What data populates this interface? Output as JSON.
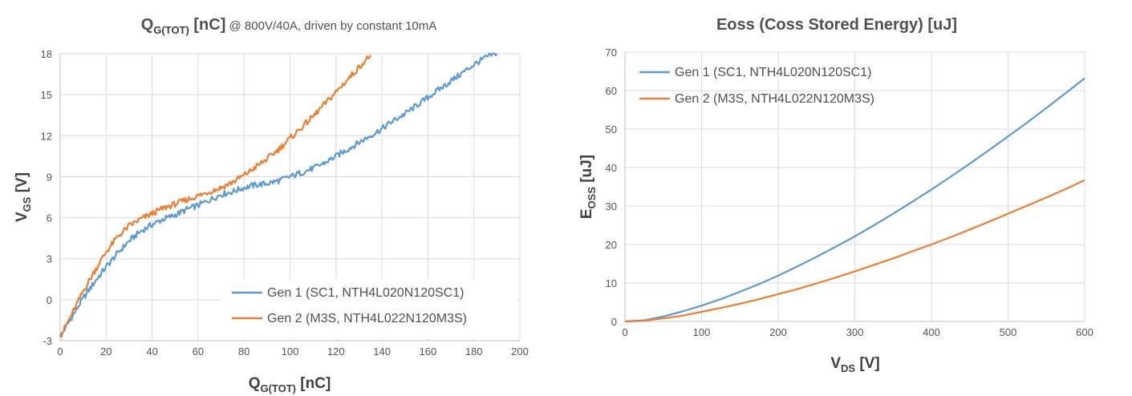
{
  "chart_data": [
    {
      "type": "line",
      "title": {
        "main": "Q",
        "main_sub": "G(TOT)",
        "main_unit": " [nC]",
        "subtitle": " @ 800V/40A, driven by constant 10mA"
      },
      "xlabel": {
        "main": "Q",
        "sub": "G(TOT)",
        "unit": " [nC]"
      },
      "ylabel": {
        "main": "V",
        "sub": "GS",
        "unit": " [V]"
      },
      "xlim": [
        0,
        200
      ],
      "ylim": [
        -3,
        18
      ],
      "xticks": [
        0,
        20,
        40,
        60,
        80,
        100,
        120,
        140,
        160,
        180,
        200
      ],
      "yticks": [
        -3,
        0,
        3,
        6,
        9,
        12,
        15,
        18
      ],
      "grid": true,
      "legend_position": "bottom-right",
      "series": [
        {
          "name": "Gen 1 (SC1, NTH4L020N120SC1)",
          "color": "#5b9bd5",
          "x": [
            0,
            5,
            10,
            15,
            20,
            25,
            30,
            35,
            40,
            45,
            50,
            55,
            60,
            65,
            70,
            75,
            80,
            85,
            90,
            95,
            100,
            105,
            110,
            115,
            120,
            125,
            130,
            135,
            140,
            145,
            150,
            155,
            160,
            165,
            170,
            175,
            180,
            185,
            190
          ],
          "y": [
            -2.7,
            -1.3,
            0.1,
            1.3,
            2.4,
            3.4,
            4.3,
            5.0,
            5.5,
            5.9,
            6.2,
            6.6,
            6.9,
            7.3,
            7.7,
            7.9,
            8.2,
            8.4,
            8.5,
            8.7,
            9.0,
            9.3,
            9.6,
            10.0,
            10.5,
            11.0,
            11.5,
            12.0,
            12.5,
            13.1,
            13.6,
            14.2,
            14.8,
            15.4,
            16.0,
            16.6,
            17.2,
            17.7,
            18.1
          ]
        },
        {
          "name": "Gen 2 (M3S, NTH4L022N120M3S)",
          "color": "#ed7d31",
          "x": [
            0,
            5,
            10,
            15,
            20,
            25,
            30,
            35,
            40,
            45,
            50,
            55,
            60,
            65,
            70,
            75,
            80,
            85,
            90,
            95,
            100,
            105,
            110,
            115,
            120,
            125,
            130,
            135
          ],
          "y": [
            -2.7,
            -1.1,
            0.6,
            2.1,
            3.5,
            4.6,
            5.4,
            5.9,
            6.3,
            6.7,
            7.0,
            7.3,
            7.6,
            7.9,
            8.2,
            8.6,
            9.1,
            9.7,
            10.3,
            11.0,
            11.8,
            12.6,
            13.4,
            14.3,
            15.2,
            16.1,
            17.0,
            17.9
          ]
        }
      ]
    },
    {
      "type": "line",
      "title": "Eoss (Coss Stored Energy) [uJ]",
      "xlabel": {
        "main": "V",
        "sub": "DS",
        "unit": " [V]"
      },
      "ylabel": {
        "main": "E",
        "sub": "OSS",
        "unit": " [uJ]"
      },
      "xlim": [
        0,
        600
      ],
      "ylim": [
        0,
        70
      ],
      "xticks": [
        0,
        100,
        200,
        300,
        400,
        500,
        600
      ],
      "yticks": [
        0,
        10,
        20,
        30,
        40,
        50,
        60,
        70
      ],
      "grid": true,
      "legend_position": "top-left",
      "series": [
        {
          "name": "Gen 1 (SC1, NTH4L020N120SC1)",
          "color": "#5b9bd5",
          "x": [
            0,
            25,
            50,
            75,
            100,
            125,
            150,
            175,
            200,
            225,
            250,
            275,
            300,
            325,
            350,
            375,
            400,
            425,
            450,
            475,
            500,
            525,
            550,
            575,
            600
          ],
          "y": [
            0,
            0.3,
            1.3,
            2.6,
            4.1,
            5.8,
            7.7,
            9.7,
            11.9,
            14.3,
            16.8,
            19.4,
            22.1,
            25.0,
            28.0,
            31.1,
            34.3,
            37.6,
            41.0,
            44.5,
            48.1,
            51.7,
            55.5,
            59.3,
            63.2
          ]
        },
        {
          "name": "Gen 2 (M3S, NTH4L022N120M3S)",
          "color": "#ed7d31",
          "x": [
            0,
            25,
            50,
            75,
            100,
            125,
            150,
            175,
            200,
            225,
            250,
            275,
            300,
            325,
            350,
            375,
            400,
            425,
            450,
            475,
            500,
            525,
            550,
            575,
            600
          ],
          "y": [
            0,
            0.2,
            0.8,
            1.5,
            2.5,
            3.5,
            4.6,
            5.8,
            7.1,
            8.4,
            9.9,
            11.4,
            13.0,
            14.7,
            16.4,
            18.2,
            20.0,
            21.9,
            23.9,
            25.9,
            28.0,
            30.1,
            32.2,
            34.4,
            36.7
          ]
        }
      ]
    }
  ]
}
